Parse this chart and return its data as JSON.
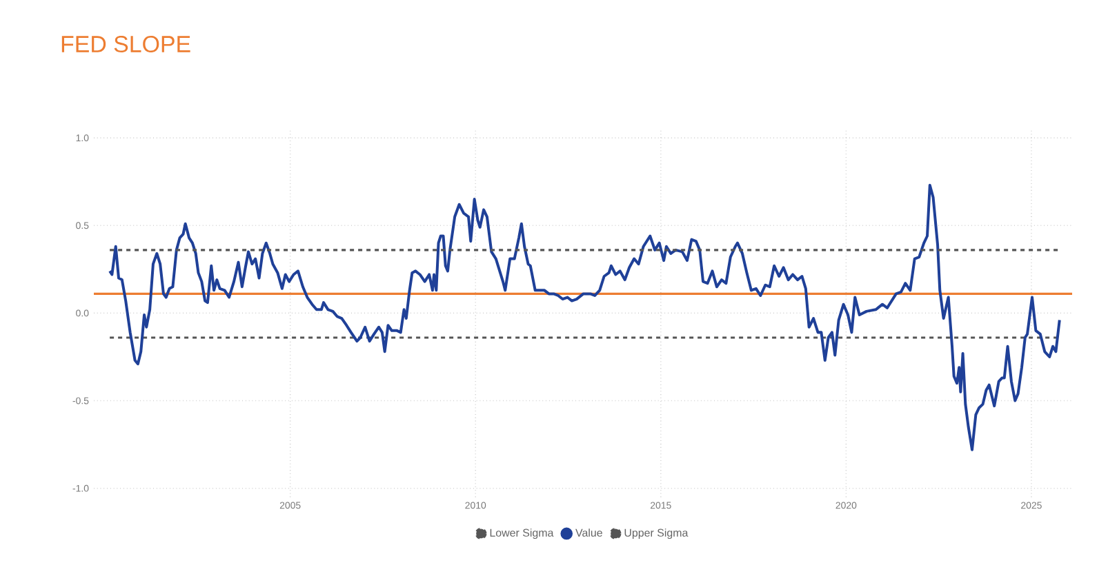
{
  "chart_data": {
    "type": "line",
    "title": "FED SLOPE",
    "xlim": [
      1999.7,
      2026.1
    ],
    "xticks": [
      2005,
      2010,
      2015,
      2020,
      2025
    ],
    "ylim": [
      -1.05,
      1.05
    ],
    "yticks": [
      {
        "value": -1,
        "label": "-1.0"
      },
      {
        "value": -0.5,
        "label": "-0.5"
      },
      {
        "value": 0,
        "label": "0.0"
      },
      {
        "value": 0.5,
        "label": "0.5"
      },
      {
        "value": 1,
        "label": "1.0"
      }
    ],
    "grid": true,
    "legend": "bottom",
    "ref_lines": [
      {
        "axis": "y",
        "value": 0.11,
        "color": "#ed7d31"
      }
    ],
    "series": [
      {
        "name": "Lower Sigma",
        "color": "#555555",
        "line_style": "dashed",
        "x": [
          2000.13,
          2025.76
        ],
        "values": [
          -0.14,
          -0.14
        ]
      },
      {
        "name": "Value",
        "color": "#1f4098",
        "x": [
          2000.13,
          2000.19,
          2000.29,
          2000.37,
          2000.46,
          2000.56,
          2000.68,
          2000.81,
          2000.89,
          2000.97,
          2001.06,
          2001.12,
          2001.21,
          2001.3,
          2001.4,
          2001.49,
          2001.58,
          2001.65,
          2001.74,
          2001.83,
          2001.93,
          2002.02,
          2002.11,
          2002.17,
          2002.27,
          2002.36,
          2002.45,
          2002.52,
          2002.61,
          2002.7,
          2002.77,
          2002.87,
          2002.94,
          2003.02,
          2003.1,
          2003.23,
          2003.35,
          2003.48,
          2003.6,
          2003.7,
          2003.79,
          2003.87,
          2003.97,
          2004.06,
          2004.16,
          2004.25,
          2004.35,
          2004.45,
          2004.53,
          2004.66,
          2004.78,
          2004.87,
          2004.97,
          2005.09,
          2005.21,
          2005.34,
          2005.46,
          2005.59,
          2005.71,
          2005.84,
          2005.9,
          2006.02,
          2006.15,
          2006.27,
          2006.39,
          2006.52,
          2006.64,
          2006.8,
          2006.89,
          2007.02,
          2007.14,
          2007.26,
          2007.39,
          2007.48,
          2007.55,
          2007.64,
          2007.74,
          2007.88,
          2007.98,
          2008.07,
          2008.13,
          2008.22,
          2008.29,
          2008.38,
          2008.5,
          2008.63,
          2008.75,
          2008.84,
          2008.88,
          2008.94,
          2009.0,
          2009.06,
          2009.13,
          2009.19,
          2009.25,
          2009.31,
          2009.44,
          2009.56,
          2009.68,
          2009.81,
          2009.87,
          2009.97,
          2010.06,
          2010.12,
          2010.22,
          2010.31,
          2010.43,
          2010.55,
          2010.74,
          2010.8,
          2010.93,
          2011.05,
          2011.17,
          2011.24,
          2011.32,
          2011.42,
          2011.48,
          2011.61,
          2011.73,
          2011.86,
          2011.98,
          2012.11,
          2012.23,
          2012.35,
          2012.48,
          2012.6,
          2012.73,
          2012.91,
          2013.1,
          2013.22,
          2013.35,
          2013.47,
          2013.6,
          2013.66,
          2013.78,
          2013.9,
          2014.03,
          2014.15,
          2014.28,
          2014.4,
          2014.53,
          2014.71,
          2014.84,
          2014.96,
          2015.08,
          2015.15,
          2015.27,
          2015.4,
          2015.58,
          2015.71,
          2015.83,
          2015.95,
          2016.05,
          2016.14,
          2016.26,
          2016.39,
          2016.51,
          2016.64,
          2016.76,
          2016.88,
          2017.01,
          2017.07,
          2017.2,
          2017.32,
          2017.44,
          2017.57,
          2017.69,
          2017.82,
          2017.94,
          2018.06,
          2018.19,
          2018.31,
          2018.44,
          2018.56,
          2018.69,
          2018.81,
          2018.91,
          2019.0,
          2019.12,
          2019.24,
          2019.33,
          2019.43,
          2019.52,
          2019.62,
          2019.7,
          2019.8,
          2019.93,
          2020.05,
          2020.15,
          2020.24,
          2020.36,
          2020.55,
          2020.8,
          2020.98,
          2021.11,
          2021.23,
          2021.35,
          2021.48,
          2021.6,
          2021.73,
          2021.85,
          2021.97,
          2022.1,
          2022.19,
          2022.26,
          2022.35,
          2022.47,
          2022.53,
          2022.63,
          2022.76,
          2022.86,
          2022.91,
          2022.99,
          2023.05,
          2023.09,
          2023.15,
          2023.22,
          2023.3,
          2023.4,
          2023.5,
          2023.59,
          2023.69,
          2023.78,
          2023.86,
          2024.0,
          2024.12,
          2024.21,
          2024.27,
          2024.36,
          2024.46,
          2024.56,
          2024.64,
          2024.74,
          2024.83,
          2024.89,
          2025.02,
          2025.12,
          2025.24,
          2025.36,
          2025.49,
          2025.58,
          2025.66,
          2025.76
        ],
        "values": [
          0.24,
          0.22,
          0.38,
          0.2,
          0.19,
          0.07,
          -0.11,
          -0.27,
          -0.29,
          -0.22,
          -0.01,
          -0.08,
          0.02,
          0.28,
          0.34,
          0.28,
          0.11,
          0.09,
          0.14,
          0.15,
          0.36,
          0.43,
          0.45,
          0.51,
          0.43,
          0.4,
          0.34,
          0.23,
          0.18,
          0.07,
          0.06,
          0.27,
          0.13,
          0.19,
          0.14,
          0.13,
          0.09,
          0.18,
          0.29,
          0.15,
          0.26,
          0.35,
          0.28,
          0.31,
          0.2,
          0.34,
          0.4,
          0.34,
          0.28,
          0.23,
          0.14,
          0.22,
          0.18,
          0.22,
          0.24,
          0.15,
          0.09,
          0.05,
          0.02,
          0.02,
          0.06,
          0.02,
          0.01,
          -0.02,
          -0.03,
          -0.07,
          -0.11,
          -0.16,
          -0.14,
          -0.08,
          -0.16,
          -0.12,
          -0.08,
          -0.11,
          -0.22,
          -0.07,
          -0.1,
          -0.1,
          -0.11,
          0.02,
          -0.03,
          0.13,
          0.23,
          0.24,
          0.22,
          0.18,
          0.22,
          0.13,
          0.22,
          0.13,
          0.4,
          0.44,
          0.44,
          0.27,
          0.24,
          0.36,
          0.55,
          0.62,
          0.57,
          0.55,
          0.41,
          0.65,
          0.53,
          0.49,
          0.59,
          0.55,
          0.35,
          0.31,
          0.18,
          0.13,
          0.31,
          0.31,
          0.43,
          0.51,
          0.38,
          0.28,
          0.27,
          0.13,
          0.13,
          0.13,
          0.11,
          0.11,
          0.1,
          0.08,
          0.09,
          0.07,
          0.08,
          0.11,
          0.11,
          0.1,
          0.13,
          0.21,
          0.23,
          0.27,
          0.22,
          0.24,
          0.19,
          0.26,
          0.31,
          0.28,
          0.38,
          0.44,
          0.36,
          0.4,
          0.3,
          0.38,
          0.34,
          0.36,
          0.35,
          0.3,
          0.42,
          0.41,
          0.36,
          0.18,
          0.17,
          0.24,
          0.15,
          0.19,
          0.17,
          0.32,
          0.38,
          0.4,
          0.34,
          0.23,
          0.13,
          0.14,
          0.1,
          0.16,
          0.15,
          0.27,
          0.21,
          0.26,
          0.19,
          0.22,
          0.19,
          0.21,
          0.14,
          -0.08,
          -0.03,
          -0.11,
          -0.11,
          -0.27,
          -0.14,
          -0.11,
          -0.24,
          -0.04,
          0.05,
          -0.01,
          -0.11,
          0.09,
          -0.01,
          0.01,
          0.02,
          0.05,
          0.03,
          0.07,
          0.11,
          0.12,
          0.17,
          0.13,
          0.31,
          0.32,
          0.4,
          0.44,
          0.73,
          0.66,
          0.39,
          0.13,
          -0.03,
          0.09,
          -0.19,
          -0.36,
          -0.4,
          -0.31,
          -0.45,
          -0.23,
          -0.52,
          -0.65,
          -0.78,
          -0.58,
          -0.54,
          -0.52,
          -0.44,
          -0.41,
          -0.53,
          -0.39,
          -0.37,
          -0.37,
          -0.19,
          -0.39,
          -0.5,
          -0.46,
          -0.31,
          -0.14,
          -0.12,
          0.09,
          -0.1,
          -0.12,
          -0.22,
          -0.25,
          -0.19,
          -0.22,
          -0.04
        ]
      },
      {
        "name": "Upper Sigma",
        "color": "#555555",
        "line_style": "dashed",
        "x": [
          2000.13,
          2025.76
        ],
        "values": [
          0.36,
          0.36
        ]
      }
    ]
  }
}
